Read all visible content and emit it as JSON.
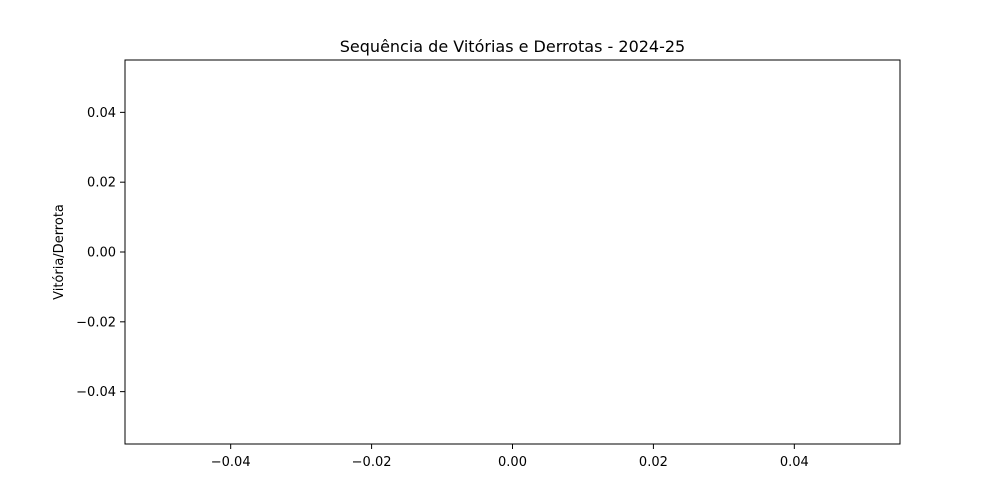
{
  "chart_data": {
    "type": "line",
    "title": "Sequência de Vitórias e Derrotas - 2024-25",
    "xlabel": "",
    "ylabel": "Vitória/Derrota",
    "x": [],
    "series": [],
    "xlim": [
      -0.055,
      0.055
    ],
    "ylim": [
      -0.055,
      0.055
    ],
    "xticks": [
      -0.04,
      -0.02,
      0.0,
      0.02,
      0.04
    ],
    "yticks": [
      -0.04,
      -0.02,
      0.0,
      0.02,
      0.04
    ],
    "xtick_labels": [
      "−0.04",
      "−0.02",
      "0.00",
      "0.02",
      "0.04"
    ],
    "ytick_labels": [
      "−0.04",
      "−0.02",
      "0.00",
      "0.02",
      "0.04"
    ],
    "grid": false,
    "legend": "none",
    "colors": {
      "axes": "#000000",
      "background": "#ffffff"
    }
  }
}
